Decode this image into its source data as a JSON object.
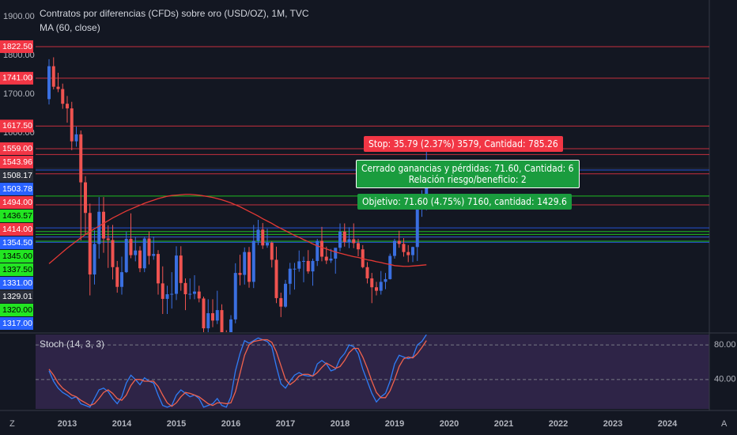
{
  "chart_data": {
    "type": "candlestick",
    "title": "Contratos por diferencias (CFDs) sobre oro (USD/OZ), 1M, TVC",
    "ma_label": "MA (60, close)",
    "stoch_label": "Stoch (14, 3, 3)",
    "ylim": [
      1085,
      1943
    ],
    "yticks": [
      {
        "value": 1900,
        "label": "1900.00"
      },
      {
        "value": 1800,
        "label": "1800.00"
      },
      {
        "value": 1700,
        "label": "1700.00"
      },
      {
        "value": 1600,
        "label": "1600.00"
      }
    ],
    "year_labels": [
      "2013",
      "2014",
      "2015",
      "2016",
      "2017",
      "2018",
      "2019",
      "2020",
      "2021",
      "2022",
      "2023",
      "2024"
    ],
    "up_color": "#3a6fe0",
    "down_color": "#ef5350",
    "open": [
      1687,
      1772,
      1719,
      1713,
      1675,
      1663,
      1578,
      1596,
      1472,
      1393,
      1234,
      1313,
      1396,
      1327,
      1323,
      1253,
      1202,
      1240,
      1326,
      1284,
      1296,
      1250,
      1327,
      1282,
      1287,
      1211,
      1171,
      1183,
      1184,
      1283,
      1212,
      1183,
      1184,
      1190,
      1172,
      1095,
      1134,
      1115,
      1142,
      1065,
      1061,
      1118,
      1238,
      1233,
      1292,
      1215,
      1321,
      1350,
      1309,
      1316,
      1272,
      1173,
      1151,
      1210,
      1249,
      1249,
      1268,
      1269,
      1242,
      1269,
      1321,
      1280,
      1270,
      1275,
      1303,
      1345,
      1318,
      1325,
      1315,
      1299,
      1253,
      1224,
      1201,
      1192,
      1215,
      1222,
      1282,
      1321,
      1313,
      1292,
      1284,
      1305,
      1409,
      1413
    ],
    "high": [
      1790,
      1795,
      1755,
      1727,
      1695,
      1680,
      1616,
      1606,
      1488,
      1417,
      1348,
      1434,
      1434,
      1361,
      1362,
      1269,
      1280,
      1345,
      1392,
      1331,
      1307,
      1332,
      1345,
      1332,
      1297,
      1255,
      1205,
      1240,
      1307,
      1307,
      1224,
      1224,
      1232,
      1205,
      1177,
      1170,
      1170,
      1192,
      1157,
      1090,
      1129,
      1263,
      1285,
      1304,
      1305,
      1362,
      1375,
      1367,
      1352,
      1319,
      1306,
      1187,
      1220,
      1264,
      1264,
      1296,
      1280,
      1297,
      1275,
      1326,
      1357,
      1306,
      1300,
      1300,
      1366,
      1366,
      1356,
      1366,
      1326,
      1310,
      1266,
      1238,
      1215,
      1243,
      1238,
      1288,
      1326,
      1347,
      1328,
      1310,
      1306,
      1439,
      1452,
      1555
    ],
    "low": [
      1673,
      1712,
      1705,
      1662,
      1626,
      1555,
      1564,
      1322,
      1337,
      1180,
      1208,
      1275,
      1290,
      1251,
      1221,
      1187,
      1182,
      1238,
      1276,
      1268,
      1240,
      1240,
      1260,
      1272,
      1182,
      1132,
      1132,
      1146,
      1168,
      1192,
      1142,
      1170,
      1170,
      1162,
      1077,
      1080,
      1098,
      1106,
      1063,
      1046,
      1062,
      1108,
      1206,
      1208,
      1200,
      1199,
      1310,
      1300,
      1303,
      1252,
      1160,
      1124,
      1148,
      1182,
      1195,
      1241,
      1214,
      1236,
      1205,
      1256,
      1268,
      1261,
      1264,
      1236,
      1294,
      1306,
      1302,
      1302,
      1281,
      1250,
      1211,
      1160,
      1180,
      1182,
      1196,
      1221,
      1275,
      1303,
      1280,
      1266,
      1266,
      1269,
      1383,
      1400
    ],
    "close": [
      1772,
      1719,
      1713,
      1675,
      1663,
      1578,
      1596,
      1472,
      1393,
      1234,
      1313,
      1396,
      1327,
      1323,
      1253,
      1202,
      1240,
      1326,
      1284,
      1296,
      1250,
      1327,
      1282,
      1287,
      1211,
      1171,
      1183,
      1184,
      1283,
      1212,
      1183,
      1184,
      1190,
      1172,
      1095,
      1134,
      1115,
      1142,
      1065,
      1061,
      1118,
      1238,
      1233,
      1292,
      1215,
      1321,
      1350,
      1309,
      1316,
      1272,
      1173,
      1151,
      1210,
      1249,
      1249,
      1268,
      1269,
      1242,
      1269,
      1321,
      1280,
      1270,
      1275,
      1303,
      1345,
      1318,
      1325,
      1315,
      1299,
      1253,
      1224,
      1201,
      1192,
      1215,
      1222,
      1282,
      1321,
      1313,
      1292,
      1284,
      1305,
      1409,
      1413,
      1520
    ],
    "ma": {
      "color": "#e53935",
      "values": [
        1262,
        1272,
        1282,
        1292,
        1302,
        1311,
        1320,
        1329,
        1337,
        1345,
        1352,
        1359,
        1366,
        1373,
        1380,
        1386,
        1392,
        1398,
        1403,
        1408,
        1413,
        1418,
        1422,
        1426,
        1430,
        1433,
        1436,
        1438,
        1439,
        1440,
        1441,
        1441,
        1440,
        1439,
        1437,
        1435,
        1433,
        1430,
        1427,
        1423,
        1419,
        1414,
        1409,
        1403,
        1397,
        1391,
        1385,
        1378,
        1372,
        1366,
        1359,
        1353,
        1347,
        1341,
        1335,
        1330,
        1324,
        1319,
        1313,
        1308,
        1304,
        1300,
        1296,
        1292,
        1289,
        1286,
        1283,
        1280,
        1278,
        1275,
        1272,
        1270,
        1267,
        1265,
        1262,
        1260,
        1257,
        1256,
        1255,
        1255,
        1256,
        1257,
        1258,
        1259
      ]
    },
    "levels": [
      {
        "value": 1822.5,
        "label": "1822.50",
        "color": "#f23645"
      },
      {
        "value": 1741,
        "label": "1741.00",
        "color": "#f23645"
      },
      {
        "value": 1617.5,
        "label": "1617.50",
        "color": "#f23645"
      },
      {
        "value": 1559,
        "label": "1559.00",
        "color": "#f23645"
      },
      {
        "value": 1543.96,
        "label": "1543.96",
        "color": "#f23645"
      },
      {
        "value": 1508.17,
        "label": "1508.17",
        "color": "#2a2e39"
      },
      {
        "value": 1503.78,
        "label": "1503.78",
        "color": "#2962ff"
      },
      {
        "value": 1494,
        "label": "1494.00",
        "color": "#f23645"
      },
      {
        "value": 1436.57,
        "label": "1436.57",
        "color": "#22e622"
      },
      {
        "value": 1414,
        "label": "1414.00",
        "color": "#f23645"
      },
      {
        "value": 1354.5,
        "label": "1354.50",
        "color": "#2962ff"
      },
      {
        "value": 1345,
        "label": "1345.00",
        "color": "#22e622"
      },
      {
        "value": 1337.5,
        "label": "1337.50",
        "color": "#22e622"
      },
      {
        "value": 1331,
        "label": "1331.00",
        "color": "#2962ff"
      },
      {
        "value": 1329.01,
        "label": "1329.01",
        "color": "#2a2e39"
      },
      {
        "value": 1320,
        "label": "1320.00",
        "color": "#22e622"
      },
      {
        "value": 1317,
        "label": "1317.00",
        "color": "#2962ff"
      }
    ],
    "stoch": {
      "ylim": [
        6,
        92
      ],
      "yticks": [
        {
          "value": 80,
          "label": "80.00"
        },
        {
          "value": 40,
          "label": "40.00"
        }
      ],
      "k": {
        "color": "#2f7df6",
        "values": [
          50,
          38,
          30,
          25,
          22,
          18,
          20,
          12,
          10,
          8,
          18,
          28,
          30,
          26,
          18,
          12,
          20,
          36,
          45,
          40,
          34,
          42,
          38,
          36,
          22,
          10,
          8,
          10,
          22,
          28,
          24,
          20,
          22,
          18,
          8,
          10,
          12,
          18,
          10,
          8,
          20,
          50,
          70,
          85,
          82,
          85,
          88,
          86,
          84,
          78,
          55,
          35,
          30,
          38,
          45,
          48,
          45,
          44,
          44,
          58,
          62,
          58,
          50,
          52,
          64,
          70,
          80,
          78,
          70,
          52,
          38,
          24,
          14,
          20,
          24,
          38,
          58,
          68,
          66,
          64,
          66,
          80,
          84,
          92
        ]
      },
      "d": {
        "color": "#f0624d",
        "values": [
          52,
          45,
          36,
          30,
          26,
          22,
          20,
          16,
          13,
          10,
          12,
          18,
          25,
          28,
          24,
          18,
          16,
          22,
          33,
          40,
          40,
          38,
          38,
          38,
          32,
          22,
          13,
          9,
          13,
          20,
          25,
          24,
          22,
          20,
          16,
          12,
          10,
          13,
          13,
          12,
          13,
          26,
          47,
          68,
          80,
          84,
          85,
          86,
          86,
          83,
          72,
          56,
          40,
          34,
          38,
          44,
          46,
          46,
          44,
          48,
          54,
          59,
          56,
          53,
          55,
          62,
          71,
          76,
          76,
          66,
          53,
          38,
          25,
          19,
          19,
          27,
          40,
          55,
          64,
          66,
          65,
          70,
          77,
          85
        ]
      }
    },
    "annotations": {
      "stop": "Stop: 35.79 (2.37%) 3579, Cantidad: 785.26",
      "closed": [
        "Cerrado ganancias y pérdidas: 71.60, Cantidad: 6",
        "Relación riesgo/beneficio: 2"
      ],
      "target": "Objetivo: 71.60 (4.75%) 7160, cantidad: 1429.6"
    }
  }
}
